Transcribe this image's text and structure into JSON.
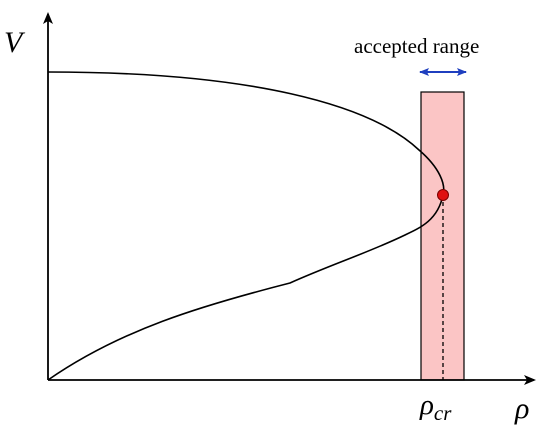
{
  "labels": {
    "y_axis": "V",
    "x_axis": "ρ",
    "range": "accepted range",
    "critical_point": "ρ",
    "critical_subscript": "cr"
  },
  "colors": {
    "band_fill": "#fbc5c5",
    "band_edge": "#000000",
    "arrow": "#1f3fbf",
    "point": "#e01010",
    "curve": "#000000"
  }
}
